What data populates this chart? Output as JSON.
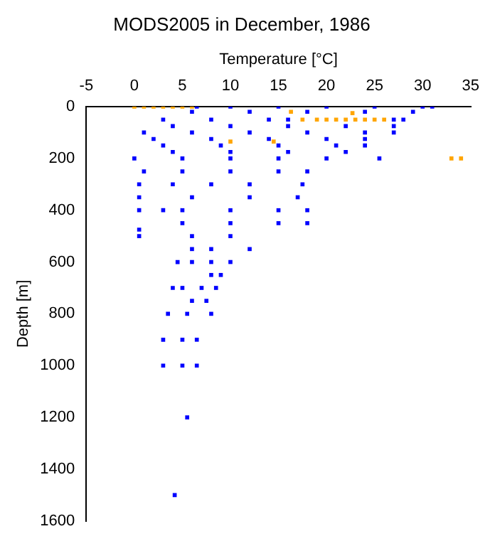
{
  "chart_data": {
    "type": "scatter",
    "title": "MODS2005 in December, 1986",
    "xlabel": "Temperature [°C]",
    "ylabel": "Depth [m]",
    "xlim": [
      -5,
      35
    ],
    "xticks": [
      -5,
      0,
      5,
      10,
      15,
      20,
      25,
      30,
      35
    ],
    "ylim": [
      1600,
      0
    ],
    "yticks": [
      0,
      200,
      400,
      600,
      800,
      1000,
      1200,
      1400,
      1600
    ],
    "grid": false,
    "legend": false,
    "marker": "square",
    "series": [
      {
        "color": "#0000ff",
        "x": [
          6.5,
          10,
          15,
          20,
          25,
          30,
          31,
          6,
          12,
          18,
          24,
          29,
          3,
          8,
          14,
          16,
          27,
          28,
          4,
          10,
          16,
          22,
          27,
          1,
          6,
          12,
          18,
          24,
          27,
          2,
          8,
          14,
          20,
          24,
          3,
          9,
          15,
          21,
          24,
          4,
          10,
          16,
          22,
          0,
          5,
          10,
          15,
          20,
          25.5,
          1,
          5,
          10,
          15,
          18,
          0.5,
          4,
          8,
          12,
          17.5,
          0.5,
          6,
          12,
          17,
          0.5,
          3,
          5,
          10,
          15,
          18,
          5,
          10,
          15,
          18,
          0.5,
          0.5,
          6,
          10,
          6,
          8,
          12,
          4.5,
          6,
          8,
          10,
          8,
          9,
          4,
          5,
          7,
          8.5,
          6,
          7.5,
          3.5,
          5.5,
          8,
          3,
          5,
          6.5,
          3,
          5,
          6.5,
          5.5,
          4.2
        ],
        "values": [
          0,
          0,
          0,
          0,
          0,
          0,
          0,
          20,
          20,
          20,
          20,
          20,
          50,
          50,
          50,
          50,
          50,
          50,
          75,
          75,
          75,
          75,
          75,
          100,
          100,
          100,
          100,
          100,
          100,
          125,
          125,
          125,
          125,
          125,
          150,
          150,
          150,
          150,
          150,
          175,
          175,
          175,
          175,
          200,
          200,
          200,
          200,
          200,
          200,
          250,
          250,
          250,
          250,
          250,
          300,
          300,
          300,
          300,
          300,
          350,
          350,
          350,
          350,
          400,
          400,
          400,
          400,
          400,
          400,
          450,
          450,
          450,
          450,
          475,
          500,
          500,
          500,
          550,
          550,
          550,
          600,
          600,
          600,
          600,
          650,
          650,
          700,
          700,
          700,
          700,
          750,
          750,
          800,
          800,
          800,
          900,
          900,
          900,
          1000,
          1000,
          1000,
          1200,
          1500
        ]
      },
      {
        "color": "#ffa500",
        "x": [
          0,
          1,
          2,
          3,
          4,
          5,
          6,
          16.3,
          22.7,
          17.5,
          19,
          20,
          21,
          22,
          23,
          24,
          25,
          26,
          10,
          14.5,
          33,
          34
        ],
        "values": [
          0,
          0,
          0,
          0,
          0,
          0,
          0,
          20,
          25,
          50,
          50,
          50,
          50,
          50,
          50,
          50,
          50,
          50,
          135,
          135,
          200,
          200
        ]
      }
    ]
  }
}
